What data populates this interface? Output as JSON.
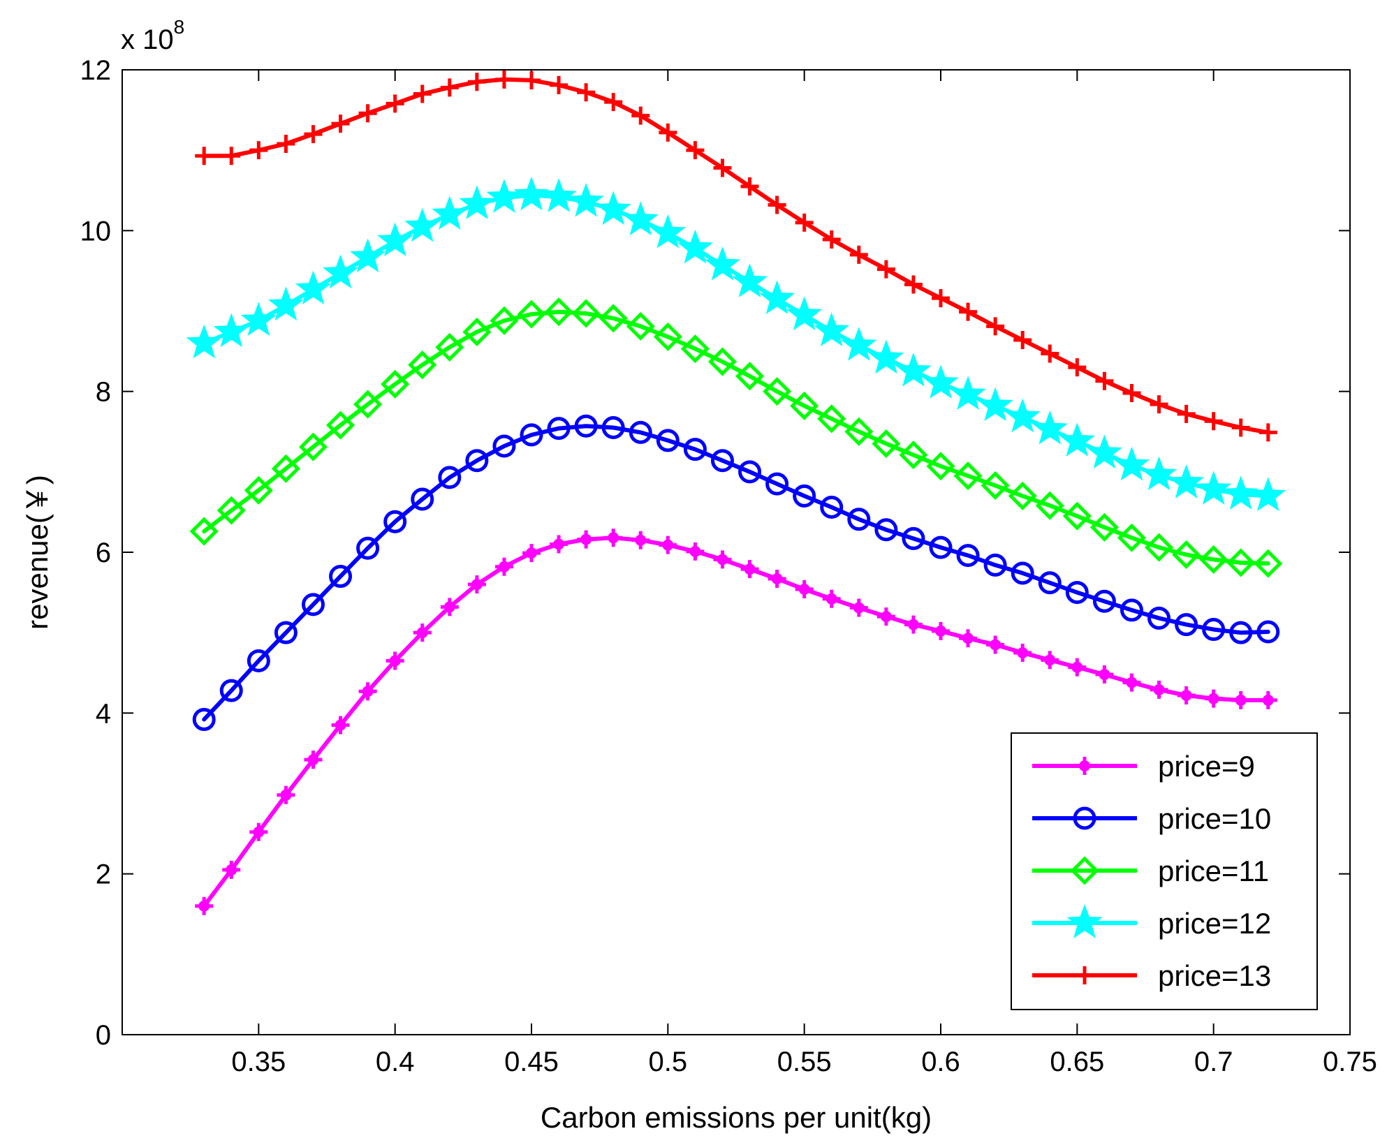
{
  "chart_data": {
    "type": "line",
    "title": "",
    "xlabel": "Carbon emissions per unit(kg)",
    "ylabel": "revenue(￥)",
    "y_exponent_prefix": "x 10",
    "y_exponent_power": "8",
    "xlim": [
      0.3,
      0.75
    ],
    "ylim": [
      0,
      12
    ],
    "x_ticks": [
      0.35,
      0.4,
      0.45,
      0.5,
      0.55,
      0.6,
      0.65,
      0.7,
      0.75
    ],
    "x_tick_labels": [
      "0.35",
      "0.4",
      "0.45",
      "0.5",
      "0.55",
      "0.6",
      "0.65",
      "0.7",
      "0.75"
    ],
    "y_ticks": [
      0,
      2,
      4,
      6,
      8,
      10,
      12
    ],
    "y_tick_labels": [
      "0",
      "2",
      "4",
      "6",
      "8",
      "10",
      "12"
    ],
    "grid": false,
    "legend_position": "bottom-right",
    "x": [
      0.33,
      0.34,
      0.35,
      0.36,
      0.37,
      0.38,
      0.39,
      0.4,
      0.41,
      0.42,
      0.43,
      0.44,
      0.45,
      0.46,
      0.47,
      0.48,
      0.49,
      0.5,
      0.51,
      0.52,
      0.53,
      0.54,
      0.55,
      0.56,
      0.57,
      0.58,
      0.59,
      0.6,
      0.61,
      0.62,
      0.63,
      0.64,
      0.65,
      0.66,
      0.67,
      0.68,
      0.69,
      0.7,
      0.71,
      0.72
    ],
    "series": [
      {
        "name": "price=9",
        "color": "#ff00ff",
        "marker": "plus-dot",
        "values": [
          1.6,
          2.05,
          2.52,
          2.98,
          3.42,
          3.85,
          4.27,
          4.65,
          5.0,
          5.32,
          5.6,
          5.82,
          5.99,
          6.1,
          6.16,
          6.18,
          6.15,
          6.09,
          6.01,
          5.91,
          5.79,
          5.67,
          5.54,
          5.42,
          5.31,
          5.2,
          5.1,
          5.02,
          4.93,
          4.85,
          4.75,
          4.66,
          4.57,
          4.48,
          4.38,
          4.29,
          4.22,
          4.18,
          4.16,
          4.16
        ]
      },
      {
        "name": "price=10",
        "color": "#0000ff",
        "marker": "circle",
        "values": [
          3.92,
          4.28,
          4.65,
          5.0,
          5.35,
          5.7,
          6.05,
          6.38,
          6.66,
          6.93,
          7.14,
          7.32,
          7.46,
          7.54,
          7.57,
          7.55,
          7.49,
          7.39,
          7.28,
          7.14,
          7.0,
          6.85,
          6.7,
          6.56,
          6.41,
          6.28,
          6.17,
          6.06,
          5.96,
          5.84,
          5.74,
          5.62,
          5.5,
          5.39,
          5.28,
          5.18,
          5.1,
          5.04,
          5.0,
          5.01
        ]
      },
      {
        "name": "price=11",
        "color": "#00ff00",
        "marker": "diamond",
        "values": [
          6.26,
          6.52,
          6.77,
          7.04,
          7.31,
          7.58,
          7.84,
          8.09,
          8.33,
          8.55,
          8.74,
          8.88,
          8.96,
          8.99,
          8.97,
          8.91,
          8.81,
          8.68,
          8.53,
          8.37,
          8.19,
          8.0,
          7.82,
          7.66,
          7.5,
          7.35,
          7.21,
          7.07,
          6.95,
          6.83,
          6.7,
          6.58,
          6.45,
          6.31,
          6.18,
          6.06,
          5.97,
          5.91,
          5.87,
          5.86
        ]
      },
      {
        "name": "price=12",
        "color": "#00ffff",
        "marker": "star",
        "values": [
          8.6,
          8.74,
          8.88,
          9.07,
          9.27,
          9.47,
          9.67,
          9.87,
          10.05,
          10.2,
          10.33,
          10.41,
          10.44,
          10.42,
          10.36,
          10.26,
          10.13,
          9.97,
          9.78,
          9.57,
          9.36,
          9.15,
          8.95,
          8.75,
          8.57,
          8.41,
          8.25,
          8.1,
          7.96,
          7.82,
          7.68,
          7.53,
          7.38,
          7.23,
          7.08,
          6.96,
          6.86,
          6.78,
          6.72,
          6.7
        ]
      },
      {
        "name": "price=13",
        "color": "#ff0000",
        "marker": "plus",
        "values": [
          10.93,
          10.93,
          11.0,
          11.08,
          11.2,
          11.33,
          11.46,
          11.58,
          11.7,
          11.78,
          11.85,
          11.88,
          11.87,
          11.81,
          11.72,
          11.6,
          11.43,
          11.22,
          11.0,
          10.78,
          10.55,
          10.32,
          10.1,
          9.89,
          9.7,
          9.52,
          9.33,
          9.16,
          8.99,
          8.81,
          8.64,
          8.47,
          8.3,
          8.13,
          7.98,
          7.84,
          7.72,
          7.63,
          7.55,
          7.49
        ]
      }
    ]
  }
}
